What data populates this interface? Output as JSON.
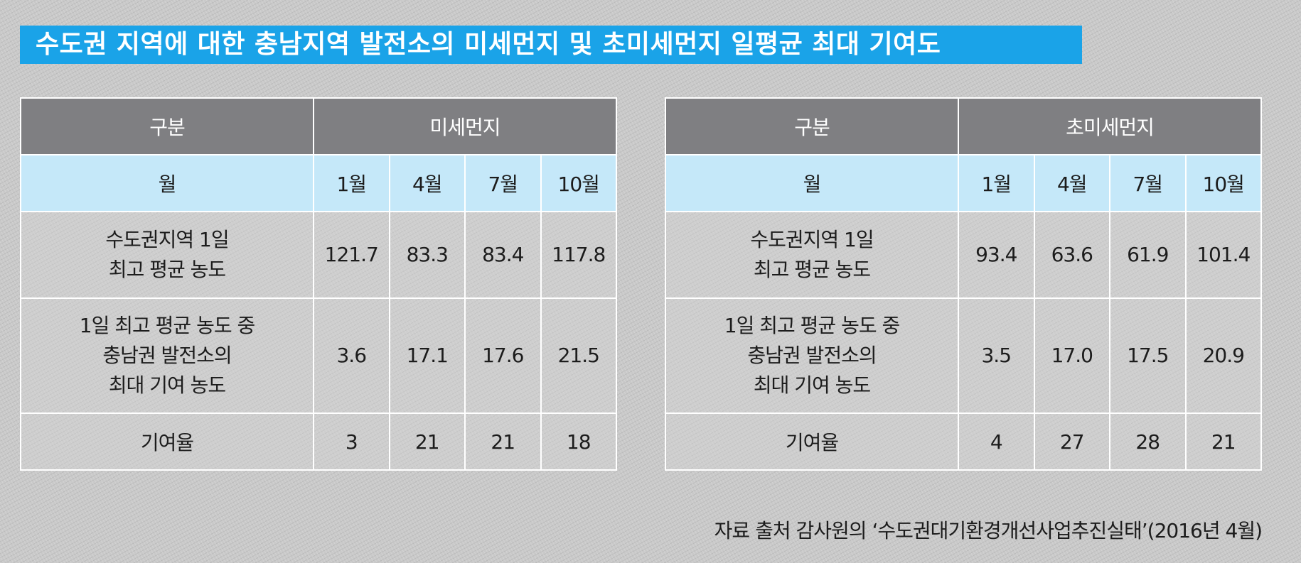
{
  "title": "수도권 지역에 대한 충남지역 발전소의 미세먼지 및 초미세먼지 일평균 최대 기여도",
  "tables": [
    {
      "label": "구분",
      "category": "미세먼지",
      "month_label": "월",
      "months": [
        "1월",
        "4월",
        "7월",
        "10월"
      ],
      "rows": [
        {
          "label": "수도권지역 1일\n최고 평균 농도",
          "values": [
            "121.7",
            "83.3",
            "83.4",
            "117.8"
          ]
        },
        {
          "label": "1일 최고 평균 농도 중\n충남권 발전소의\n최대 기여 농도",
          "values": [
            "3.6",
            "17.1",
            "17.6",
            "21.5"
          ]
        },
        {
          "label": "기여율",
          "values": [
            "3",
            "21",
            "21",
            "18"
          ]
        }
      ]
    },
    {
      "label": "구분",
      "category": "초미세먼지",
      "month_label": "월",
      "months": [
        "1월",
        "4월",
        "7월",
        "10월"
      ],
      "rows": [
        {
          "label": "수도권지역 1일\n최고 평균 농도",
          "values": [
            "93.4",
            "63.6",
            "61.9",
            "101.4"
          ]
        },
        {
          "label": "1일 최고 평균 농도 중\n충남권 발전소의\n최대 기여 농도",
          "values": [
            "3.5",
            "17.0",
            "17.5",
            "20.9"
          ]
        },
        {
          "label": "기여율",
          "values": [
            "4",
            "27",
            "28",
            "21"
          ]
        }
      ]
    }
  ],
  "source": "자료 출처 감사원의 ‘수도권대기환경개선사업추진실태’(2016년 4월)"
}
